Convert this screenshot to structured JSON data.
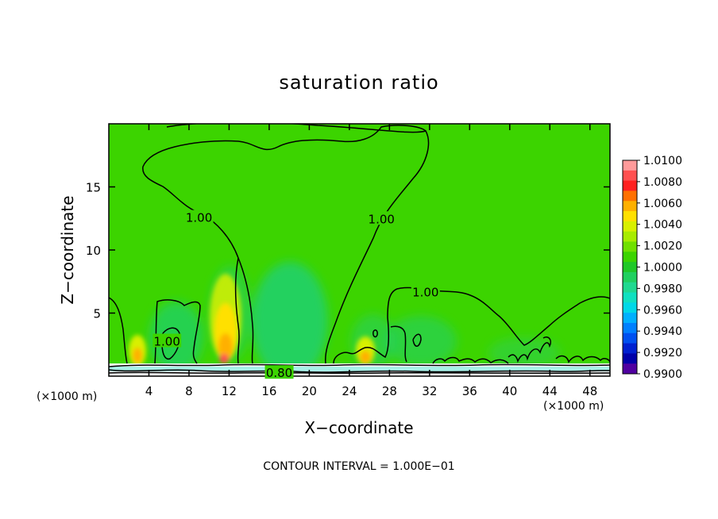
{
  "chart_data": {
    "type": "heatmap",
    "title": "saturation ratio",
    "xlabel": "X−coordinate",
    "ylabel": "Z−coordinate",
    "x_unit": "(×1000 m)",
    "y_unit": "(×1000 m)",
    "xlim": [
      0,
      50
    ],
    "ylim": [
      0,
      20
    ],
    "x_ticks": [
      4,
      8,
      12,
      16,
      20,
      24,
      28,
      32,
      36,
      40,
      44,
      48
    ],
    "x_tick_labels": [
      "4",
      "8",
      "12",
      "16",
      "20",
      "24",
      "28",
      "32",
      "36",
      "40",
      "44",
      "48"
    ],
    "y_ticks": [
      5,
      10,
      15
    ],
    "y_tick_labels": [
      "5",
      "10",
      "15"
    ],
    "colorbar": {
      "min": 0.99,
      "max": 1.01,
      "step": 0.001,
      "labels": [
        "1.0100",
        "1.0080",
        "1.0060",
        "1.0040",
        "1.0020",
        "1.0000",
        "0.9980",
        "0.9960",
        "0.9940",
        "0.9920",
        "0.9900"
      ],
      "colors": [
        "#ff9a9a",
        "#ff5050",
        "#ff2020",
        "#ff7000",
        "#ffb000",
        "#ffe000",
        "#d8f000",
        "#a8ec00",
        "#70e000",
        "#3cd400",
        "#20c828",
        "#20d060",
        "#20d890",
        "#10e0c0",
        "#00d8e8",
        "#00b0ff",
        "#0080ff",
        "#0050f0",
        "#0020d0",
        "#0000a8",
        "#5000a0"
      ]
    },
    "contour_labels": [
      {
        "text": "1.00",
        "x": 9.0,
        "z": 12.6
      },
      {
        "text": "1.00",
        "x": 27.2,
        "z": 12.5
      },
      {
        "text": "1.00",
        "x": 31.6,
        "z": 6.7
      },
      {
        "text": "1.00",
        "x": 5.8,
        "z": 2.8
      },
      {
        "text": "0.80",
        "x": 17.0,
        "z": 0.3
      }
    ],
    "footer": "CONTOUR INTERVAL = 1.000E−01"
  }
}
